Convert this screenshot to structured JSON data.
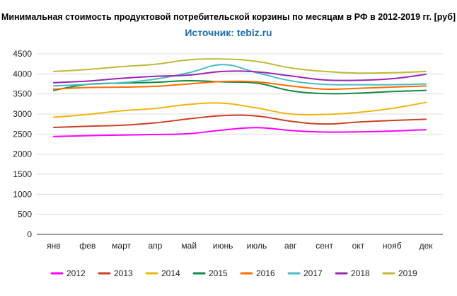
{
  "chart_data": {
    "type": "line",
    "title": "Минимальная стоимость продуктовой потребительской корзины по месяцам в РФ в 2012-2019 гг. [руб]",
    "subtitle": "Источник: tebiz.ru",
    "categories": [
      "янв",
      "фев",
      "март",
      "апр",
      "май",
      "июнь",
      "июль",
      "авг",
      "сент",
      "окт",
      "нояб",
      "дек"
    ],
    "y_ticks": [
      "0",
      "500",
      "1000",
      "1500",
      "2000",
      "2500",
      "3000",
      "3500",
      "4000",
      "4500"
    ],
    "ylim": [
      0,
      4500
    ],
    "grid": true,
    "legend_position": "bottom",
    "series": [
      {
        "name": "2012",
        "color": "#ff00ff",
        "values": [
          2440,
          2460,
          2475,
          2490,
          2510,
          2600,
          2660,
          2590,
          2550,
          2555,
          2575,
          2610
        ]
      },
      {
        "name": "2013",
        "color": "#cc4125",
        "values": [
          2665,
          2695,
          2720,
          2780,
          2880,
          2960,
          2950,
          2820,
          2750,
          2800,
          2840,
          2870
        ]
      },
      {
        "name": "2014",
        "color": "#f1b40e",
        "values": [
          2920,
          2990,
          3080,
          3140,
          3240,
          3270,
          3150,
          3000,
          2990,
          3040,
          3140,
          3290
        ]
      },
      {
        "name": "2015",
        "color": "#128a43",
        "values": [
          3590,
          3740,
          3770,
          3790,
          3830,
          3800,
          3770,
          3580,
          3510,
          3520,
          3560,
          3590
        ]
      },
      {
        "name": "2016",
        "color": "#ff6d01",
        "values": [
          3620,
          3660,
          3670,
          3690,
          3750,
          3810,
          3800,
          3700,
          3620,
          3640,
          3670,
          3700
        ]
      },
      {
        "name": "2017",
        "color": "#46bdc6",
        "values": [
          3700,
          3740,
          3780,
          3870,
          4030,
          4230,
          4030,
          3830,
          3740,
          3730,
          3730,
          3750
        ]
      },
      {
        "name": "2018",
        "color": "#9c27b0",
        "values": [
          3780,
          3820,
          3890,
          3940,
          3970,
          4060,
          4050,
          3950,
          3850,
          3840,
          3880,
          3990
        ]
      },
      {
        "name": "2019",
        "color": "#bfba38",
        "values": [
          4060,
          4110,
          4180,
          4240,
          4350,
          4370,
          4310,
          4150,
          4060,
          4020,
          4030,
          4060
        ]
      }
    ]
  }
}
